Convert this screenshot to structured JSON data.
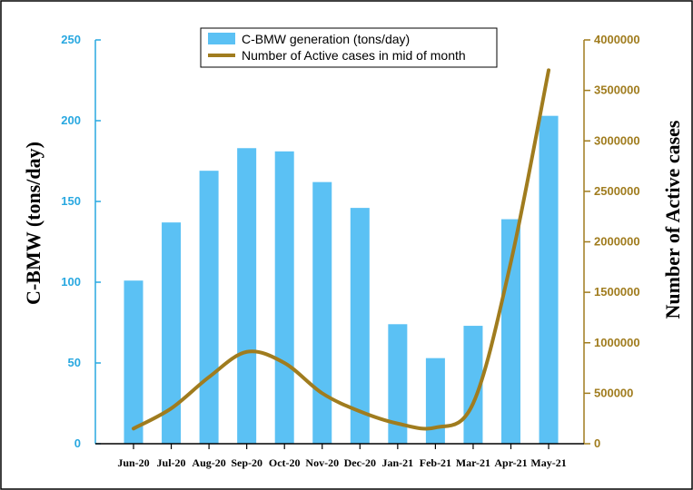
{
  "colors": {
    "bar": "#5bc1f4",
    "line": "#a07c1e",
    "left_axis": "#29a8e0",
    "right_axis": "#a07c1e"
  },
  "chart_data": {
    "type": "bar+line",
    "categories": [
      "Jun-20",
      "Jul-20",
      "Aug-20",
      "Sep-20",
      "Oct-20",
      "Nov-20",
      "Dec-20",
      "Jan-21",
      "Feb-21",
      "Mar-21",
      "Apr-21",
      "May-21"
    ],
    "series": [
      {
        "name": "C-BMW generation (tons/day)",
        "type": "bar",
        "axis": "left",
        "values": [
          101,
          137,
          169,
          183,
          181,
          162,
          146,
          74,
          53,
          73,
          139,
          203
        ]
      },
      {
        "name": "Number of Active cases in mid of month",
        "type": "line",
        "axis": "right",
        "values": [
          150000,
          350000,
          660000,
          910000,
          800000,
          500000,
          320000,
          200000,
          160000,
          400000,
          1800000,
          3700000
        ]
      }
    ],
    "ylabel_left": "C-BMW (tons/day)",
    "ylabel_right": "Number of Active cases",
    "ylim_left": [
      0,
      250
    ],
    "ylim_right": [
      0,
      4000000
    ],
    "yticks_left": [
      "0",
      "50",
      "100",
      "150",
      "200",
      "250"
    ],
    "yticks_right": [
      "0",
      "500000",
      "1000000",
      "1500000",
      "2000000",
      "2500000",
      "3000000",
      "3500000",
      "4000000"
    ],
    "legend": [
      "C-BMW generation (tons/day)",
      "Number of Active cases in mid of month"
    ],
    "legend_position": "top-center"
  }
}
